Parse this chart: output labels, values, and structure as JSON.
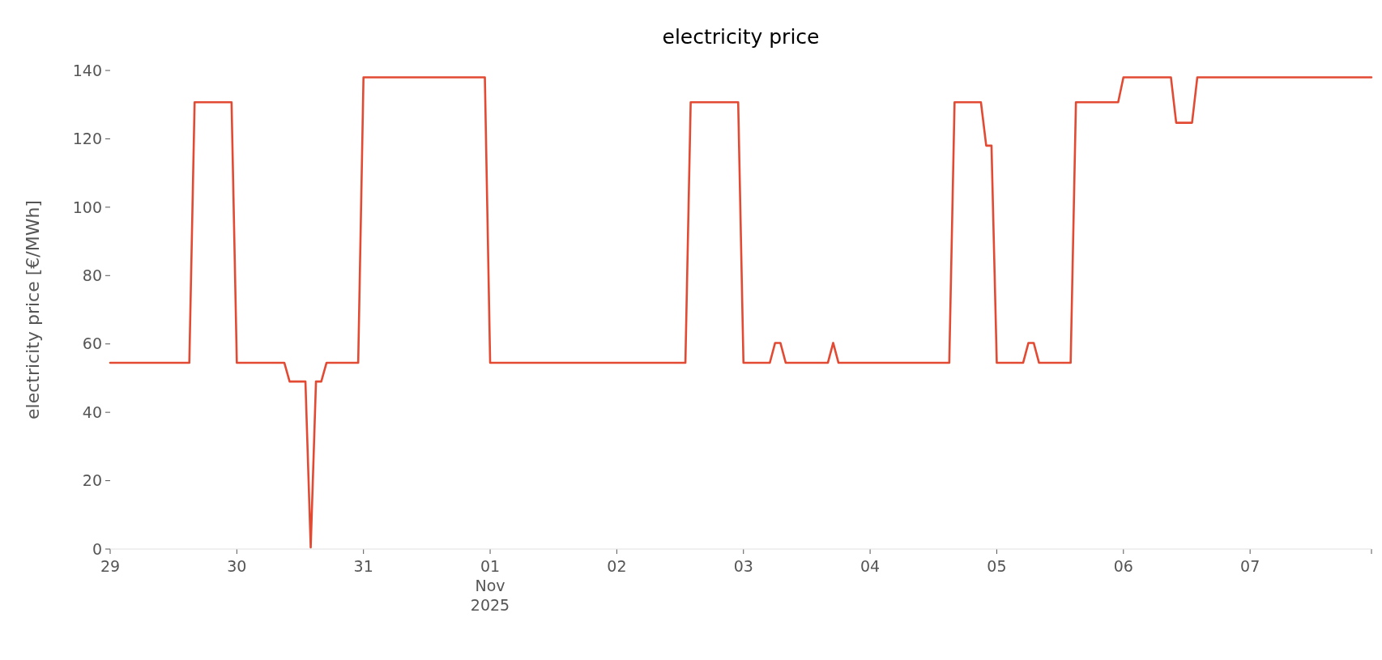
{
  "chart_data": {
    "type": "line",
    "title": "electricity price",
    "ylabel": "electricity price [€/MWh]",
    "xlim": [
      "2025-10-29T00:00",
      "2025-11-07T23:00"
    ],
    "ylim": [
      0,
      140
    ],
    "yticks": [
      0,
      20,
      40,
      60,
      80,
      100,
      120,
      140
    ],
    "xticks": [
      {
        "value": "2025-10-29",
        "label": "29"
      },
      {
        "value": "2025-10-30",
        "label": "30"
      },
      {
        "value": "2025-10-31",
        "label": "31"
      },
      {
        "value": "2025-11-01",
        "label": "01\nNov\n2025"
      },
      {
        "value": "2025-11-02",
        "label": "02"
      },
      {
        "value": "2025-11-03",
        "label": "03"
      },
      {
        "value": "2025-11-04",
        "label": "04"
      },
      {
        "value": "2025-11-05",
        "label": "05"
      },
      {
        "value": "2025-11-06",
        "label": "06"
      },
      {
        "value": "2025-11-07",
        "label": "07"
      },
      {
        "value": "2025-11-07T23:00",
        "label": null
      }
    ],
    "grid": false,
    "series": [
      {
        "color": "#e24a33",
        "line_style": "solid",
        "marker": "none",
        "x": [
          "2025-10-29T00:00",
          "2025-10-29T15:00",
          "2025-10-29T16:00",
          "2025-10-29T23:00",
          "2025-10-30T00:00",
          "2025-10-30T09:00",
          "2025-10-30T10:00",
          "2025-10-30T13:00",
          "2025-10-30T14:00",
          "2025-10-30T15:00",
          "2025-10-30T16:00",
          "2025-10-30T17:00",
          "2025-10-30T23:00",
          "2025-10-31T00:00",
          "2025-10-31T23:00",
          "2025-11-01T00:00",
          "2025-11-02T13:00",
          "2025-11-02T14:00",
          "2025-11-02T23:00",
          "2025-11-03T00:00",
          "2025-11-03T05:00",
          "2025-11-03T06:00",
          "2025-11-03T07:00",
          "2025-11-03T08:00",
          "2025-11-03T16:00",
          "2025-11-03T17:00",
          "2025-11-03T18:00",
          "2025-11-04T15:00",
          "2025-11-04T16:00",
          "2025-11-04T21:00",
          "2025-11-04T22:00",
          "2025-11-04T23:00",
          "2025-11-05T00:00",
          "2025-11-05T05:00",
          "2025-11-05T06:00",
          "2025-11-05T07:00",
          "2025-11-05T08:00",
          "2025-11-05T14:00",
          "2025-11-05T15:00",
          "2025-11-05T23:00",
          "2025-11-06T00:00",
          "2025-11-06T09:00",
          "2025-11-06T10:00",
          "2025-11-06T13:00",
          "2025-11-06T14:00",
          "2025-11-07T23:00"
        ],
        "values": [
          54.5,
          54.5,
          130.7,
          130.7,
          54.5,
          54.5,
          49,
          49,
          0.5,
          49,
          49,
          54.5,
          54.5,
          138,
          138,
          54.5,
          54.5,
          130.7,
          130.7,
          54.5,
          54.5,
          60.3,
          60.3,
          54.5,
          54.5,
          60.3,
          54.5,
          54.5,
          130.7,
          130.7,
          118,
          118,
          54.5,
          54.5,
          60.3,
          60.3,
          54.5,
          54.5,
          130.7,
          130.7,
          138,
          138,
          124.7,
          124.7,
          138,
          138
        ]
      }
    ]
  }
}
